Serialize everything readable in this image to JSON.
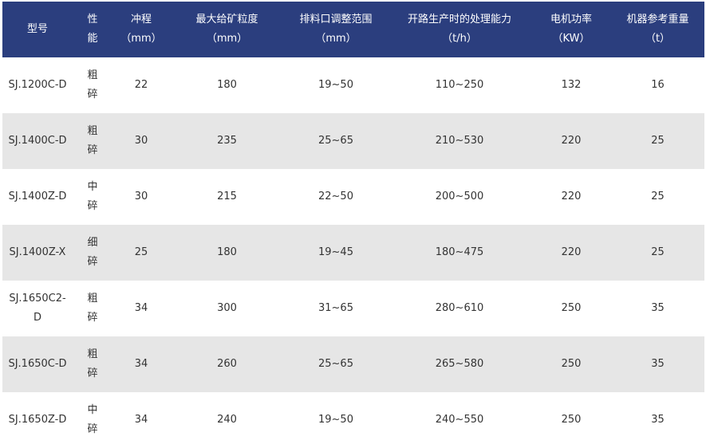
{
  "colors": {
    "header_bg": "#2b3e7e",
    "alt_row_bg": "#e6e6e6",
    "text": "#333333"
  },
  "headers": [
    {
      "title": "型号",
      "unit": ""
    },
    {
      "title": "性能",
      "unit": ""
    },
    {
      "title": "冲程",
      "unit": "（mm）"
    },
    {
      "title": "最大给矿粒度",
      "unit": "（mm）"
    },
    {
      "title": "排料口调整范围",
      "unit": "（mm）"
    },
    {
      "title": "开路生产时的处理能力",
      "unit": "（t/h）"
    },
    {
      "title": "电机功率",
      "unit": "（KW）"
    },
    {
      "title": "机器参考重量",
      "unit": "（t）"
    }
  ],
  "rows": [
    [
      "SJ.1200C-D",
      "粗碎",
      "22",
      "180",
      "19~50",
      "110~250",
      "132",
      "16"
    ],
    [
      "SJ.1400C-D",
      "粗碎",
      "30",
      "235",
      "25~65",
      "210~530",
      "220",
      "25"
    ],
    [
      "SJ.1400Z-D",
      "中碎",
      "30",
      "215",
      "22~50",
      "200~500",
      "220",
      "25"
    ],
    [
      "SJ.1400Z-X",
      "细碎",
      "25",
      "180",
      "19~45",
      "180~475",
      "220",
      "25"
    ],
    [
      "SJ.1650C2-D",
      "粗碎",
      "34",
      "300",
      "31~65",
      "280~610",
      "250",
      "35"
    ],
    [
      "SJ.1650C-D",
      "粗碎",
      "34",
      "260",
      "25~65",
      "265~580",
      "250",
      "35"
    ],
    [
      "SJ.1650Z-D",
      "中碎",
      "34",
      "240",
      "19~50",
      "240~550",
      "250",
      "35"
    ]
  ]
}
